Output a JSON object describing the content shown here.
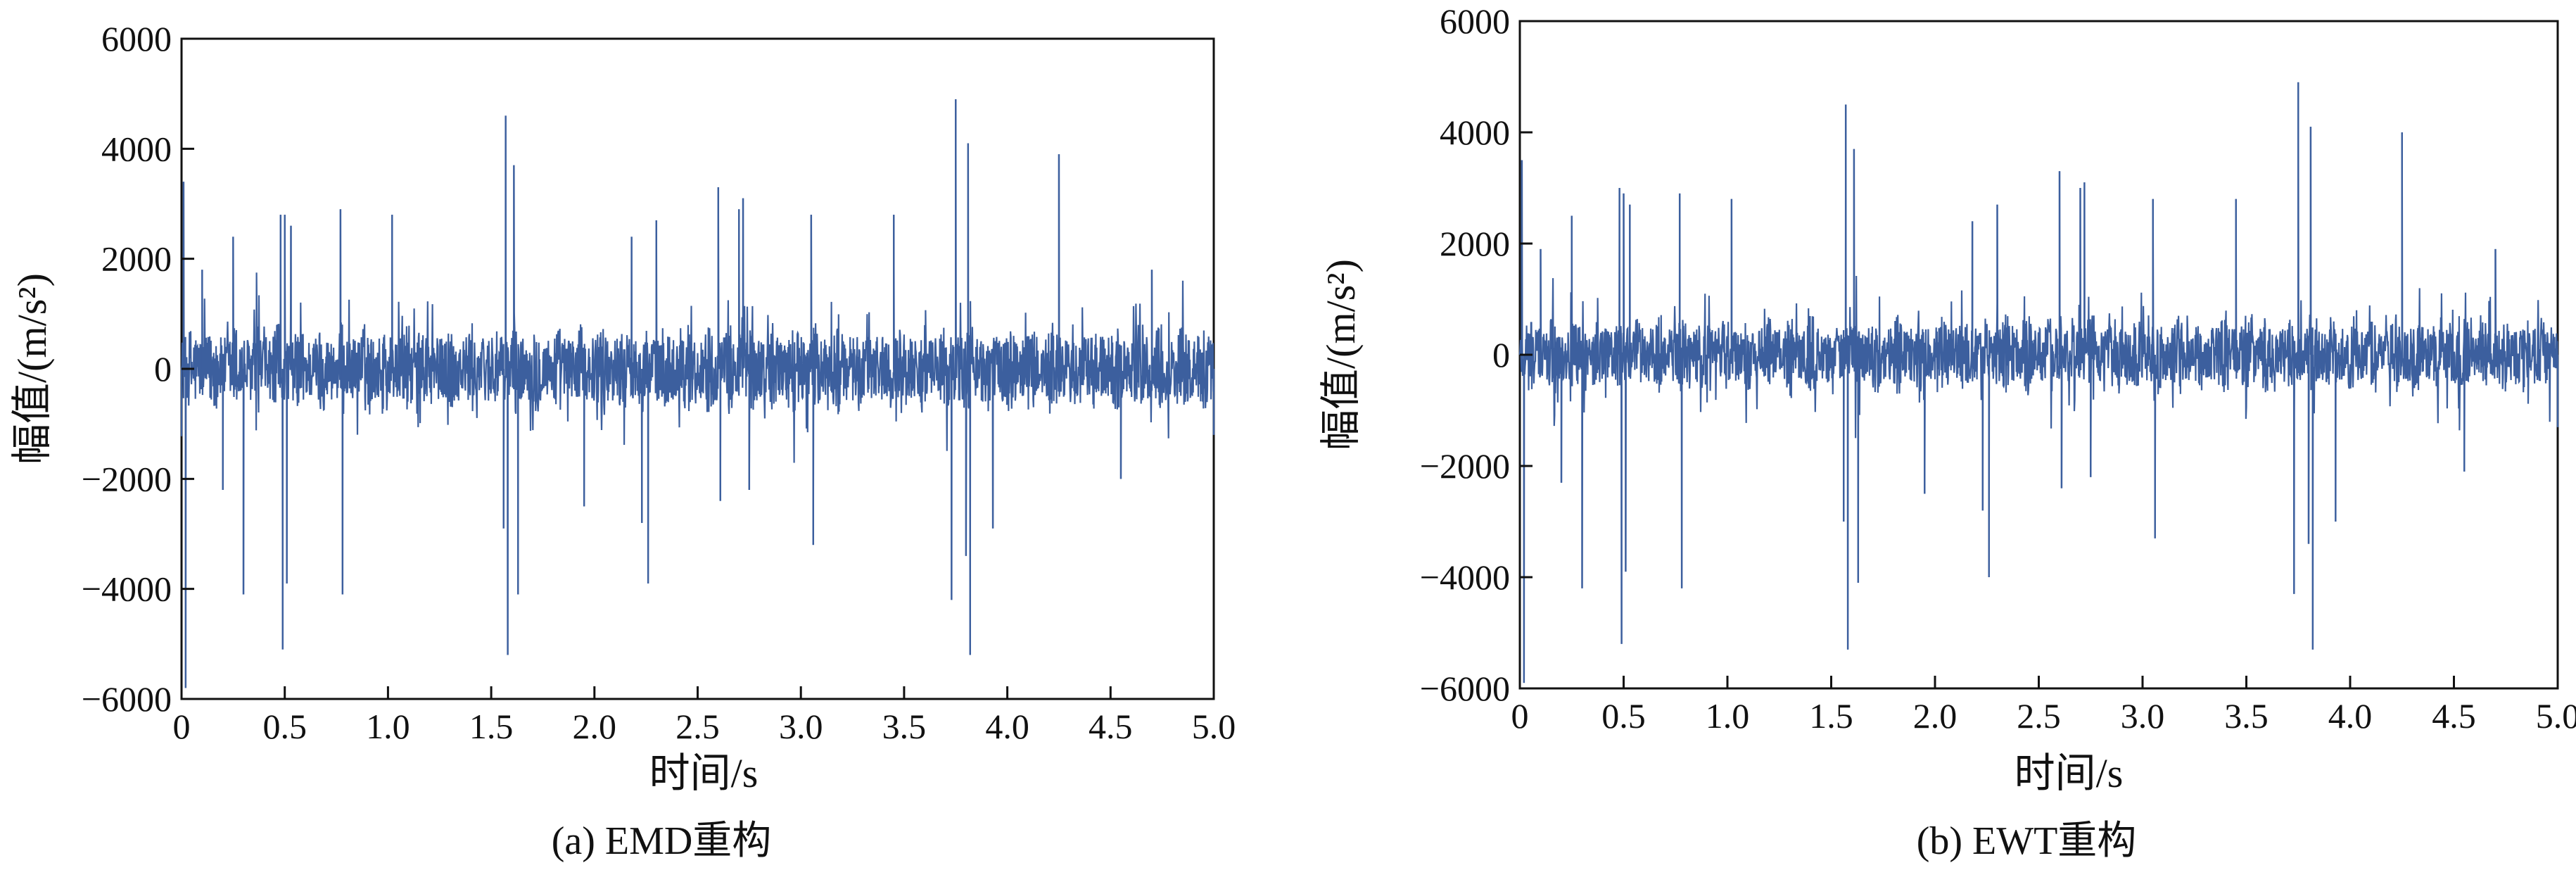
{
  "chart_data": [
    {
      "type": "line",
      "caption": "(a) EMD重构",
      "xlabel": "时间/s",
      "ylabel": "幅值/(m/s²)",
      "xlim": [
        0,
        5.0
      ],
      "ylim": [
        -6000,
        6000
      ],
      "xticks": [
        "0",
        "0.5",
        "1.0",
        "1.5",
        "2.0",
        "2.5",
        "3.0",
        "3.5",
        "4.0",
        "4.5",
        "5.0"
      ],
      "yticks": [
        "6000",
        "4000",
        "2000",
        "0",
        "−2000",
        "−4000",
        "−6000"
      ],
      "line_color": "#3c5f9e",
      "grid": false,
      "series": [
        {
          "x": [
            0,
            0.01,
            0.02,
            0.1,
            0.2,
            0.25,
            0.3,
            0.48,
            0.49,
            0.5,
            0.51,
            0.53,
            0.77,
            0.78,
            1.02,
            1.56,
            1.57,
            1.58,
            1.61,
            1.63,
            1.95,
            2.18,
            2.23,
            2.26,
            2.3,
            2.6,
            2.61,
            2.7,
            2.72,
            2.75,
            3.05,
            3.06,
            3.45,
            3.73,
            3.75,
            3.8,
            3.81,
            3.82,
            3.93,
            4.25,
            4.55,
            4.7,
            5.0
          ],
          "y": [
            0,
            3400,
            -5800,
            1800,
            -2200,
            2400,
            -4100,
            2800,
            -5100,
            2800,
            -3900,
            2600,
            2900,
            -4100,
            2800,
            -2900,
            4600,
            -5200,
            3700,
            -4100,
            -2500,
            2400,
            -2800,
            -3900,
            2700,
            3300,
            -2400,
            2900,
            3100,
            -2200,
            2800,
            -3200,
            2800,
            -4200,
            4900,
            -3400,
            4100,
            -5200,
            -2900,
            3900,
            -2000,
            1800,
            -1200
          ]
        }
      ]
    },
    {
      "type": "line",
      "caption": "(b) EWT重构",
      "xlabel": "时间/s",
      "ylabel": "幅值/(m/s²)",
      "xlim": [
        0,
        5.0
      ],
      "ylim": [
        -6000,
        6000
      ],
      "xticks": [
        "0",
        "0.5",
        "1.0",
        "1.5",
        "2.0",
        "2.5",
        "3.0",
        "3.5",
        "4.0",
        "4.5",
        "5.0"
      ],
      "yticks": [
        "6000",
        "4000",
        "2000",
        "0",
        "−2000",
        "−4000",
        "−6000"
      ],
      "line_color": "#3c5f9e",
      "grid": false,
      "series": [
        {
          "x": [
            0,
            0.01,
            0.02,
            0.1,
            0.2,
            0.25,
            0.3,
            0.48,
            0.49,
            0.5,
            0.51,
            0.53,
            0.77,
            0.78,
            1.02,
            1.56,
            1.57,
            1.58,
            1.61,
            1.63,
            1.95,
            2.18,
            2.23,
            2.26,
            2.3,
            2.6,
            2.61,
            2.7,
            2.72,
            2.75,
            3.05,
            3.06,
            3.45,
            3.73,
            3.75,
            3.8,
            3.81,
            3.82,
            3.93,
            4.25,
            4.55,
            4.7,
            5.0
          ],
          "y": [
            0,
            3500,
            -5900,
            1900,
            -2300,
            2500,
            -4200,
            3000,
            -5200,
            2900,
            -3900,
            2700,
            2900,
            -4200,
            2800,
            -3000,
            4500,
            -5300,
            3700,
            -4100,
            -2500,
            2400,
            -2800,
            -4000,
            2700,
            3300,
            -2400,
            3000,
            3100,
            -2200,
            2800,
            -3300,
            2800,
            -4300,
            4900,
            -3400,
            4100,
            -5300,
            -3000,
            4000,
            -2100,
            1900,
            -1300
          ]
        }
      ]
    }
  ]
}
